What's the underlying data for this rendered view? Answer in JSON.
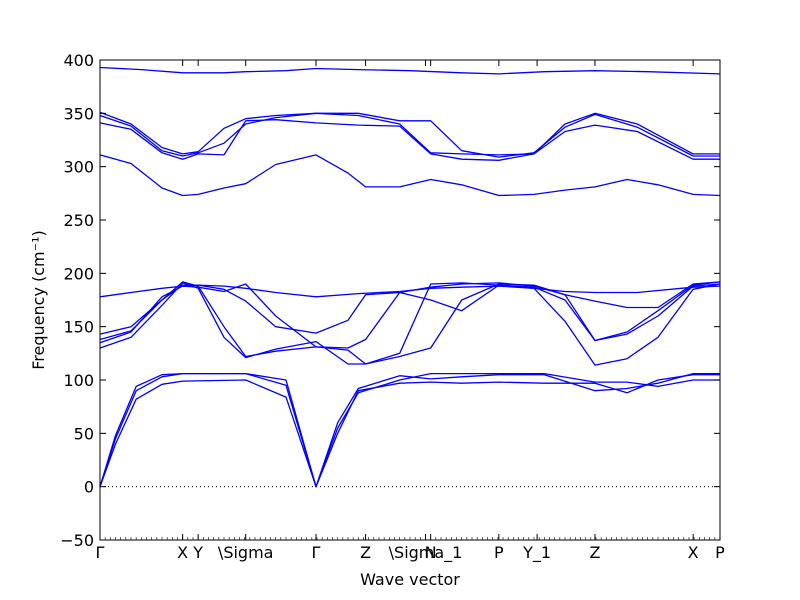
{
  "chart_data": {
    "type": "line",
    "title": "",
    "xlabel": "Wave vector",
    "ylabel": "Frequency (cm⁻¹)",
    "ylim": [
      -50,
      400
    ],
    "y_ticks": [
      -50,
      0,
      50,
      100,
      150,
      200,
      250,
      300,
      350,
      400
    ],
    "grid": false,
    "legend": "none",
    "line_color": "#0000ff",
    "zero_line": {
      "y": 0,
      "style": "dotted",
      "color": "#000000"
    },
    "xlim": [
      0,
      6.0
    ],
    "x_ticks": [
      {
        "label": "Γ",
        "x": 0
      },
      {
        "label": "X",
        "x": 0.8
      },
      {
        "label": "Y",
        "x": 0.95
      },
      {
        "label": "\\Sigma",
        "x": 1.41
      },
      {
        "label": "Γ",
        "x": 2.09
      },
      {
        "label": "Z",
        "x": 2.57
      },
      {
        "label": "\\Sigma_1",
        "x": 3.15
      },
      {
        "label": "N",
        "x": 3.2
      },
      {
        "label": "P",
        "x": 3.86
      },
      {
        "label": "Y_1",
        "x": 4.23
      },
      {
        "label": "Z",
        "x": 4.79
      },
      {
        "label": "X",
        "x": 5.74
      },
      {
        "label": "P",
        "x": 6.0
      }
    ],
    "series": [
      {
        "x": [
          0,
          0.4,
          0.8,
          1.2,
          1.41,
          1.8,
          2.09,
          2.5,
          3.0,
          3.5,
          3.86,
          4.3,
          4.79,
          5.3,
          6.0
        ],
        "values": [
          393,
          391,
          388,
          388,
          389,
          390,
          392,
          391,
          390,
          388,
          387,
          389,
          390,
          389,
          387
        ]
      },
      {
        "x": [
          0,
          0.3,
          0.6,
          0.8,
          0.95,
          1.2,
          1.41,
          1.7,
          2.09,
          2.5,
          2.9,
          3.2,
          3.5,
          3.86,
          4.2,
          4.5,
          4.79,
          5.2,
          5.74,
          6.0
        ],
        "values": [
          351,
          340,
          318,
          312,
          314,
          336,
          345,
          348,
          350,
          348,
          340,
          313,
          312,
          311,
          312,
          340,
          350,
          340,
          312,
          312
        ]
      },
      {
        "x": [
          0,
          0.3,
          0.6,
          0.8,
          0.95,
          1.2,
          1.41,
          1.7,
          2.09,
          2.5,
          2.9,
          3.2,
          3.5,
          3.86,
          4.2,
          4.5,
          4.79,
          5.2,
          5.74,
          6.0
        ],
        "values": [
          341,
          335,
          313,
          307,
          312,
          311,
          343,
          344,
          341,
          339,
          338,
          312,
          307,
          306,
          312,
          333,
          339,
          333,
          307,
          307
        ]
      },
      {
        "x": [
          0,
          0.3,
          0.6,
          0.8,
          0.95,
          1.2,
          1.41,
          1.7,
          2.09,
          2.5,
          2.9,
          3.2,
          3.5,
          3.86,
          4.2,
          4.5,
          4.79,
          5.2,
          5.74,
          6.0
        ],
        "values": [
          348,
          338,
          315,
          310,
          313,
          322,
          340,
          346,
          350,
          350,
          343,
          343,
          315,
          309,
          313,
          337,
          349,
          337,
          310,
          310
        ]
      },
      {
        "x": [
          0,
          0.3,
          0.6,
          0.8,
          0.95,
          1.2,
          1.41,
          1.7,
          2.09,
          2.4,
          2.57,
          2.9,
          3.2,
          3.5,
          3.86,
          4.2,
          4.5,
          4.79,
          5.1,
          5.4,
          5.74,
          6.0
        ],
        "values": [
          311,
          303,
          280,
          273,
          274,
          280,
          284,
          302,
          311,
          294,
          281,
          281,
          288,
          283,
          273,
          274,
          278,
          281,
          288,
          283,
          274,
          273
        ]
      },
      {
        "x": [
          0,
          0.3,
          0.6,
          0.8,
          0.95,
          1.2,
          1.41,
          1.7,
          2.09,
          2.5,
          2.9,
          3.2,
          3.5,
          3.86,
          4.2,
          4.5,
          4.79,
          5.2,
          5.74,
          6.0
        ],
        "values": [
          178,
          182,
          186,
          188,
          189,
          188,
          186,
          182,
          178,
          181,
          183,
          186,
          187,
          188,
          186,
          183,
          182,
          182,
          187,
          188
        ]
      },
      {
        "x": [
          0,
          0.3,
          0.6,
          0.8,
          0.95,
          1.2,
          1.41,
          1.7,
          2.09,
          2.4,
          2.57,
          2.9,
          3.2,
          3.5,
          3.86,
          4.2,
          4.5,
          4.79,
          5.1,
          5.4,
          5.74,
          6.0
        ],
        "values": [
          143,
          150,
          175,
          189,
          189,
          185,
          174,
          150,
          144,
          156,
          180,
          182,
          187,
          190,
          191,
          188,
          180,
          174,
          168,
          168,
          190,
          192
        ]
      },
      {
        "x": [
          0,
          0.3,
          0.6,
          0.8,
          0.95,
          1.2,
          1.41,
          1.7,
          2.09,
          2.4,
          2.57,
          2.9,
          3.2,
          3.5,
          3.86,
          4.2,
          4.5,
          4.79,
          5.1,
          5.4,
          5.74,
          6.0
        ],
        "values": [
          130,
          140,
          170,
          191,
          186,
          140,
          121,
          129,
          136,
          115,
          115,
          125,
          190,
          191,
          189,
          186,
          155,
          114,
          120,
          140,
          185,
          190
        ]
      },
      {
        "x": [
          0,
          0.3,
          0.6,
          0.8,
          0.95,
          1.2,
          1.41,
          1.7,
          2.09,
          2.4,
          2.57,
          2.9,
          3.2,
          3.5,
          3.86,
          4.2,
          4.5,
          4.79,
          5.1,
          5.4,
          5.74,
          6.0
        ],
        "values": [
          138,
          146,
          175,
          192,
          188,
          150,
          122,
          127,
          131,
          130,
          138,
          182,
          175,
          165,
          189,
          187,
          175,
          137,
          145,
          165,
          189,
          192
        ]
      },
      {
        "x": [
          0,
          0.3,
          0.6,
          0.8,
          0.95,
          1.2,
          1.41,
          1.7,
          2.09,
          2.4,
          2.57,
          2.9,
          3.2,
          3.5,
          3.86,
          4.2,
          4.5,
          4.79,
          5.1,
          5.4,
          5.74,
          6.0
        ],
        "values": [
          135,
          145,
          178,
          188,
          187,
          183,
          190,
          160,
          131,
          128,
          115,
          122,
          130,
          175,
          190,
          189,
          180,
          137,
          143,
          160,
          188,
          190
        ]
      },
      {
        "x": [
          0,
          0.15,
          0.35,
          0.6,
          0.8,
          1.41,
          1.8,
          2.09,
          2.3,
          2.5,
          2.9,
          3.2,
          3.5,
          3.86,
          4.3,
          4.79,
          5.1,
          5.4,
          5.74,
          6.0
        ],
        "values": [
          0,
          45,
          90,
          103,
          106,
          106,
          95,
          0,
          55,
          88,
          100,
          106,
          106,
          106,
          106,
          98,
          98,
          94,
          100,
          100
        ]
      },
      {
        "x": [
          0,
          0.15,
          0.35,
          0.6,
          0.8,
          1.41,
          1.8,
          2.09,
          2.3,
          2.5,
          2.9,
          3.2,
          3.5,
          3.86,
          4.3,
          4.79,
          5.1,
          5.4,
          5.74,
          6.0
        ],
        "values": [
          0,
          40,
          82,
          96,
          99,
          100,
          84,
          0,
          50,
          90,
          97,
          98,
          97,
          98,
          97,
          97,
          88,
          100,
          105,
          105
        ]
      },
      {
        "x": [
          0,
          0.15,
          0.35,
          0.6,
          0.8,
          1.41,
          1.8,
          2.09,
          2.3,
          2.5,
          2.9,
          3.2,
          3.5,
          3.86,
          4.3,
          4.79,
          5.1,
          5.4,
          5.74,
          6.0
        ],
        "values": [
          0,
          48,
          94,
          105,
          106,
          106,
          100,
          0,
          60,
          92,
          104,
          101,
          103,
          105,
          105,
          90,
          92,
          97,
          106,
          106
        ]
      }
    ]
  }
}
